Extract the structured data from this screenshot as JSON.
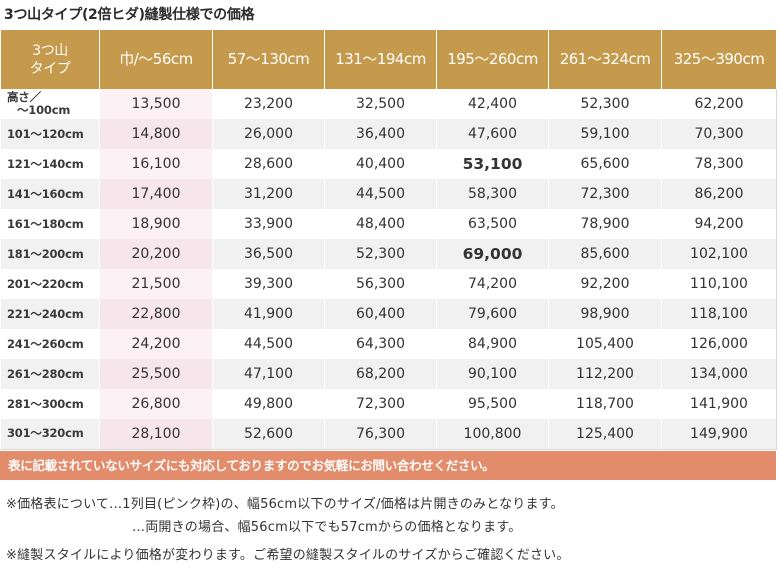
{
  "title": "3つ山タイプ(2倍ヒダ)縫製仕様での価格",
  "table": {
    "corner_line1": "3つ山",
    "corner_line2": "タイプ",
    "width_headers": [
      "巾/〜56cm",
      "57〜130cm",
      "131〜194cm",
      "195〜260cm",
      "261〜324cm",
      "325〜390cm"
    ],
    "rows": [
      {
        "label1": "高さ／",
        "label2": "〜100cm",
        "values": [
          "13,500",
          "23,200",
          "32,500",
          "42,400",
          "52,300",
          "62,200"
        ]
      },
      {
        "label": "101〜120cm",
        "values": [
          "14,800",
          "26,000",
          "36,400",
          "47,600",
          "59,100",
          "70,300"
        ]
      },
      {
        "label": "121〜140cm",
        "values": [
          "16,100",
          "28,600",
          "40,400",
          "53,100",
          "65,600",
          "78,300"
        ]
      },
      {
        "label": "141〜160cm",
        "values": [
          "17,400",
          "31,200",
          "44,500",
          "58,300",
          "72,300",
          "86,200"
        ]
      },
      {
        "label": "161〜180cm",
        "values": [
          "18,900",
          "33,900",
          "48,400",
          "63,500",
          "78,900",
          "94,200"
        ]
      },
      {
        "label": "181〜200cm",
        "values": [
          "20,200",
          "36,500",
          "52,300",
          "69,000",
          "85,600",
          "102,100"
        ]
      },
      {
        "label": "201〜220cm",
        "values": [
          "21,500",
          "39,300",
          "56,300",
          "74,200",
          "92,200",
          "110,100"
        ]
      },
      {
        "label": "221〜240cm",
        "values": [
          "22,800",
          "41,900",
          "60,400",
          "79,600",
          "98,900",
          "118,100"
        ]
      },
      {
        "label": "241〜260cm",
        "values": [
          "24,200",
          "44,500",
          "64,300",
          "84,900",
          "105,400",
          "126,000"
        ]
      },
      {
        "label": "261〜280cm",
        "values": [
          "25,500",
          "47,100",
          "68,200",
          "90,100",
          "112,200",
          "134,000"
        ]
      },
      {
        "label": "281〜300cm",
        "values": [
          "26,800",
          "49,800",
          "72,300",
          "95,500",
          "118,700",
          "141,900"
        ]
      },
      {
        "label": "301〜320cm",
        "values": [
          "28,100",
          "52,600",
          "76,300",
          "100,800",
          "125,400",
          "149,900"
        ]
      }
    ]
  },
  "banner": "表に記載されていないサイズにも対応しておりますのでお気軽にお問い合わせください。",
  "notes": {
    "note1": "※価格表について…1列目(ピンク枠)の、幅56cm以下のサイズ/価格は片開きのみとなります。",
    "note2": "…両開きの場合、幅56cm以下でも57cmからの価格となります。",
    "note3": "※縫製スタイルにより価格が変わります。ご希望の縫製スタイルのサイズからご確認ください。"
  },
  "colors": {
    "header_bg": "#c59a4c",
    "pink_column": "#fcf1f5",
    "banner_bg": "#e38c6c"
  }
}
